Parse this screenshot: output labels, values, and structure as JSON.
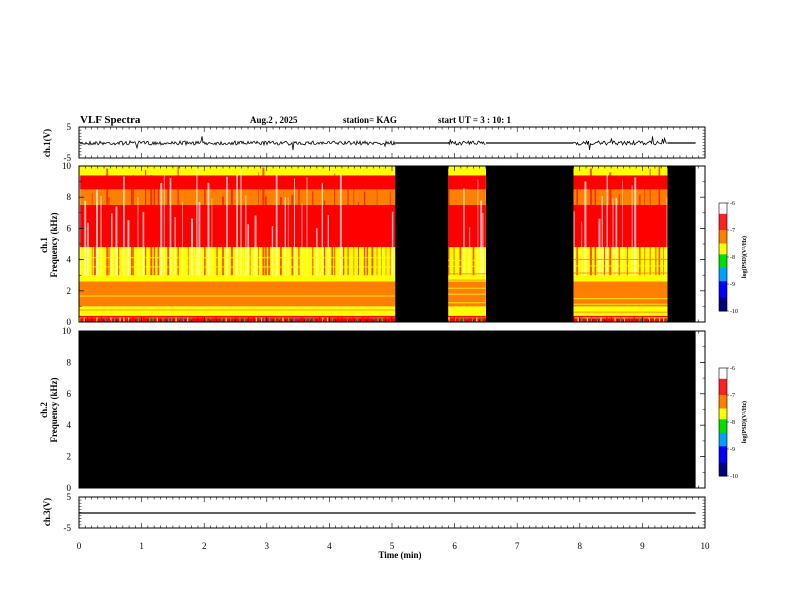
{
  "header": {
    "title": "VLF Spectra",
    "date": "Aug.2 , 2025",
    "station": "station= KAG",
    "start_ut": "start UT = 3 : 10: 1"
  },
  "chart_data": [
    {
      "panel": "ch1-waveform",
      "type": "line",
      "ylabel": "ch.1(V)",
      "ylim": [
        -5,
        5
      ],
      "yticks": [
        "5",
        "-5"
      ],
      "x_range_min": [
        0,
        10
      ],
      "series": [
        {
          "x_min": [
            0,
            5.05,
            5.9,
            6.5,
            7.9,
            9.4,
            9.85
          ],
          "baseline": 0,
          "data_segments_min": [
            [
              0.0,
              5.05
            ],
            [
              5.9,
              6.5
            ],
            [
              7.9,
              9.4
            ]
          ],
          "flat_segments_min": [
            [
              5.05,
              5.9
            ],
            [
              6.5,
              7.9
            ],
            [
              9.4,
              9.85
            ]
          ]
        }
      ]
    },
    {
      "panel": "ch1-spectrogram",
      "type": "heatmap",
      "ylabel": "Frequency (kHz)",
      "channel": "ch.1",
      "ylim": [
        0,
        10
      ],
      "yticks": [
        "0",
        "2",
        "4",
        "6",
        "8",
        "10"
      ],
      "data_segments_min": [
        [
          0.0,
          5.05
        ],
        [
          5.9,
          6.5
        ],
        [
          7.9,
          9.4
        ]
      ],
      "no_data_segments_min": [
        [
          5.05,
          5.9
        ],
        [
          6.5,
          7.9
        ],
        [
          9.4,
          9.85
        ]
      ],
      "bands_khz": [
        {
          "from": 0.0,
          "to": 0.4,
          "level": -6.8
        },
        {
          "from": 0.4,
          "to": 1.0,
          "level": -7.6
        },
        {
          "from": 1.0,
          "to": 2.6,
          "level": -7.0
        },
        {
          "from": 2.6,
          "to": 3.0,
          "level": -7.8
        },
        {
          "from": 3.0,
          "to": 4.8,
          "level": -8.0
        },
        {
          "from": 4.8,
          "to": 7.5,
          "level": -6.6
        },
        {
          "from": 7.5,
          "to": 8.5,
          "level": -7.2
        },
        {
          "from": 8.5,
          "to": 9.4,
          "level": -6.4
        },
        {
          "from": 9.4,
          "to": 10.0,
          "level": -8.0
        }
      ],
      "colorbar": {
        "title": "log(PSD)(V²/Hz)",
        "range": [
          -10,
          -6
        ],
        "ticks": [
          "-6",
          "-7",
          "-8",
          "-9",
          "-10"
        ]
      }
    },
    {
      "panel": "ch2-spectrogram",
      "type": "heatmap",
      "ylabel": "Frequency (kHz)",
      "channel": "ch.2",
      "ylim": [
        0,
        10
      ],
      "yticks": [
        "0",
        "2",
        "4",
        "6",
        "8",
        "10"
      ],
      "data_segments_min": [],
      "no_data_segments_min": [
        [
          0.0,
          9.85
        ]
      ],
      "colorbar": {
        "title": "log(PSD)(V²/Hz)",
        "range": [
          -10,
          -6
        ],
        "ticks": [
          "-6",
          "-7",
          "-8",
          "-9",
          "-10"
        ]
      }
    },
    {
      "panel": "ch3-waveform",
      "type": "line",
      "ylabel": "ch.3(V)",
      "ylim": [
        -5,
        5
      ],
      "yticks": [
        "5",
        "-5"
      ],
      "series": [
        {
          "x_min": [
            0,
            9.85
          ],
          "values": [
            0,
            0
          ]
        }
      ]
    }
  ],
  "x_axis": {
    "label": "Time (min)",
    "ticks": [
      "0",
      "1",
      "2",
      "3",
      "4",
      "5",
      "6",
      "7",
      "8",
      "9",
      "10"
    ],
    "range": [
      0,
      10
    ]
  },
  "colors": {
    "no_data": "#000000",
    "scale": [
      "#000080",
      "#0000ff",
      "#00a0ff",
      "#00e000",
      "#ffff00",
      "#ff8000",
      "#ff0000",
      "#ffffff"
    ]
  }
}
